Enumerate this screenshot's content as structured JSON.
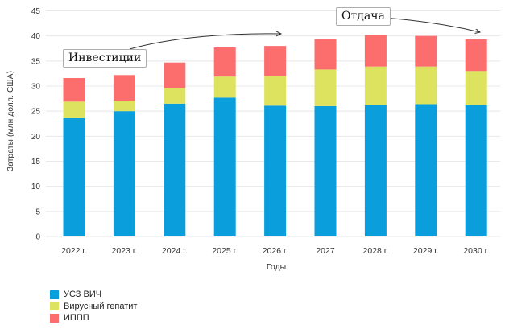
{
  "chart_data": {
    "type": "bar",
    "stacked": true,
    "title": "",
    "xlabel": "Годы",
    "ylabel": "Затраты (млн долл. США)",
    "ylim": [
      0,
      45
    ],
    "ytick_step": 5,
    "grid": true,
    "legend_position": "bottom-left",
    "categories": [
      "2022 г.",
      "2023 г.",
      "2024 г.",
      "2025 г.",
      "2026 г.",
      "2027",
      "2028 г.",
      "2029 г.",
      "2030 г."
    ],
    "series": [
      {
        "name": "УСЗ ВИЧ",
        "color": "#0a9fdc",
        "values": [
          23.6,
          25.0,
          26.5,
          27.7,
          26.1,
          26.0,
          26.2,
          26.4,
          26.2
        ]
      },
      {
        "name": "Вирусный гепатит",
        "color": "#dde35f",
        "values": [
          3.3,
          2.1,
          3.1,
          4.2,
          5.9,
          7.3,
          7.7,
          7.5,
          6.8
        ]
      },
      {
        "name": "ИППП",
        "color": "#fc6d6d",
        "values": [
          4.7,
          5.1,
          5.1,
          5.8,
          6.0,
          6.1,
          6.3,
          6.1,
          6.3
        ]
      }
    ],
    "stack_totals": [
      31.6,
      32.2,
      34.7,
      37.7,
      38.0,
      39.4,
      40.2,
      40.0,
      39.3
    ],
    "annotations": [
      {
        "label": "Инвестиции"
      },
      {
        "label": "Отдача"
      }
    ],
    "colors": {
      "gridline": "#e8e8e8",
      "tick_text": "#333333",
      "arrow": "#333333"
    }
  }
}
